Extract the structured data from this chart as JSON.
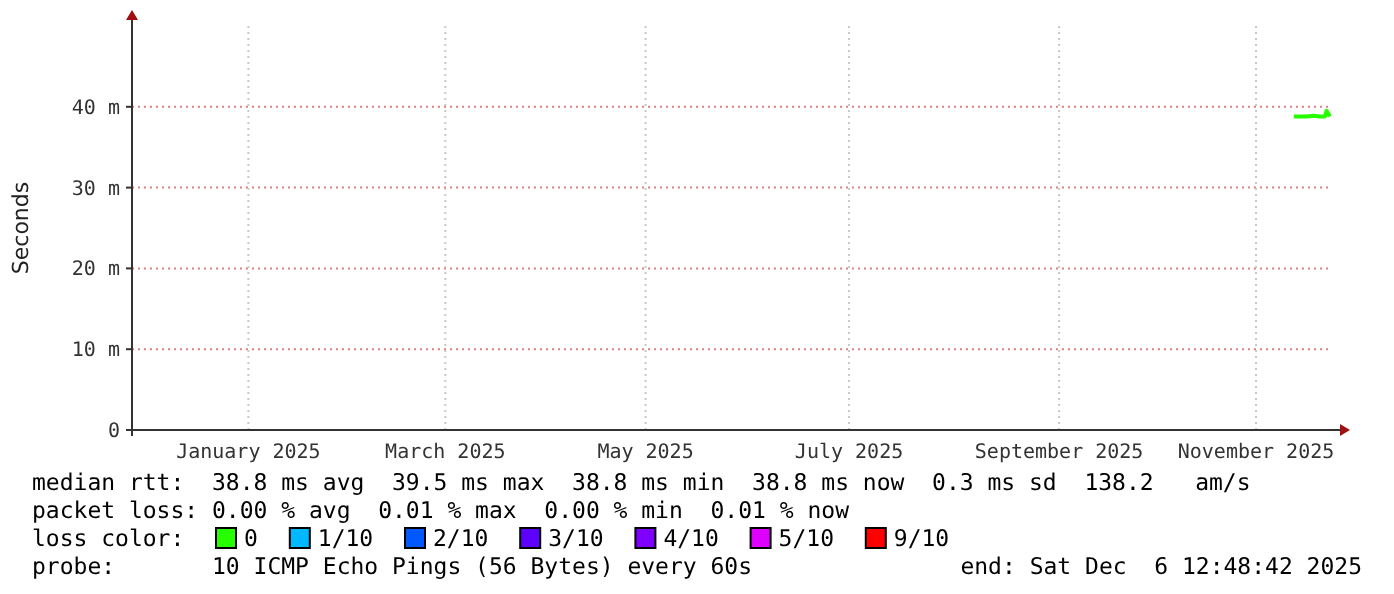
{
  "chart_data": {
    "type": "line",
    "ylabel": "Seconds",
    "xlim": [
      "2024-12-06T12:48",
      "2025-12-06T12:48"
    ],
    "xticks": [
      {
        "value": "2025-01-11",
        "label": "January 2025"
      },
      {
        "value": "2025-03-12",
        "label": "March 2025"
      },
      {
        "value": "2025-05-12",
        "label": "May 2025"
      },
      {
        "value": "2025-07-13",
        "label": "July 2025"
      },
      {
        "value": "2025-09-15",
        "label": "September 2025"
      },
      {
        "value": "2025-11-14",
        "label": "November 2025"
      }
    ],
    "ylim": [
      0,
      50
    ],
    "yticks": [
      0,
      {
        "value": 10,
        "label": "10 m"
      },
      {
        "value": 20,
        "label": "20 m"
      },
      {
        "value": 30,
        "label": "30 m"
      },
      {
        "value": 40,
        "label": "40 m"
      }
    ],
    "grid": true,
    "legend": "bottom",
    "legend_title": "loss color:",
    "series": [
      {
        "name": "0",
        "color": "#26ff00",
        "x": [
          "2025-11-25T12:00",
          "2025-11-27T12:00",
          "2025-11-29T12:00",
          "2025-12-01T12:00",
          "2025-12-03T12:00",
          "2025-12-05T00:00",
          "2025-12-05T12:00",
          "2025-12-06T12:00"
        ],
        "values": [
          38.8,
          38.8,
          38.8,
          38.9,
          38.8,
          38.8,
          39.5,
          38.8
        ]
      },
      {
        "name": "1/10",
        "color": "#00b8ff"
      },
      {
        "name": "2/10",
        "color": "#0059ff"
      },
      {
        "name": "3/10",
        "color": "#5e00ff"
      },
      {
        "name": "4/10",
        "color": "#7e00ff"
      },
      {
        "name": "5/10",
        "color": "#dd00ff"
      },
      {
        "name": "9/10",
        "color": "#ff0000"
      }
    ],
    "annotations": [
      "median rtt:  38.8 ms avg  39.5 ms max  38.8 ms min  38.8 ms now  0.3 ms sd  138.2   am/s",
      "packet loss: 0.00 % avg  0.01 % max  0.00 % min  0.01 % now",
      "probe:       10 ICMP Echo Pings (56 Bytes) every 60s",
      "end: Sat Dec  6 12:48:42 2025"
    ]
  }
}
